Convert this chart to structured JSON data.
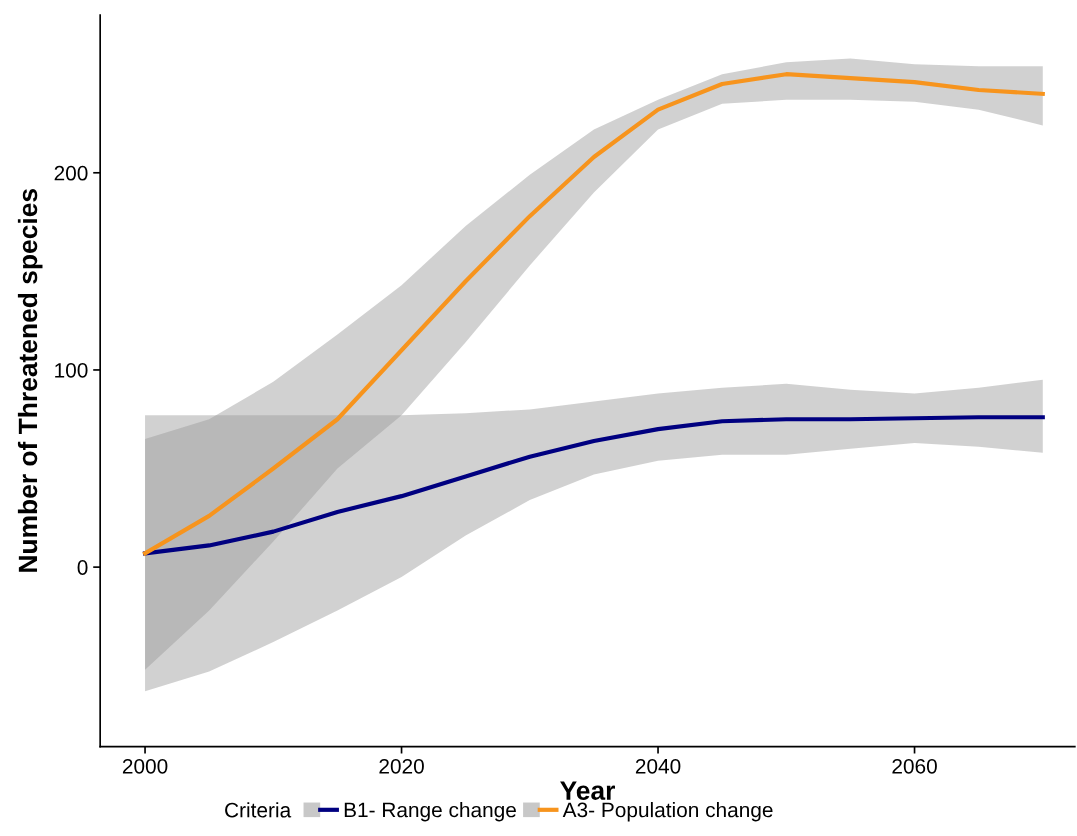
{
  "chart_data": {
    "type": "line",
    "xlabel": "Year",
    "ylabel": "Number of Threatened species",
    "legend_title": "Criteria",
    "x": [
      2000,
      2005,
      2010,
      2015,
      2020,
      2025,
      2030,
      2035,
      2040,
      2045,
      2050,
      2055,
      2060,
      2065,
      2070
    ],
    "series": [
      {
        "name": "B1- Range change",
        "color": "#000080",
        "values": [
          7,
          11,
          18,
          28,
          36,
          46,
          56,
          64,
          70,
          74,
          75,
          75,
          75.5,
          76,
          76
        ],
        "lower": [
          -63,
          -53,
          -38,
          -22,
          -5,
          16,
          34,
          47,
          54,
          57,
          57,
          60,
          63,
          61,
          58
        ],
        "upper": [
          77,
          77,
          77,
          77,
          77,
          78,
          80,
          84,
          88,
          91,
          93,
          90,
          88,
          91,
          95
        ]
      },
      {
        "name": "A3- Population change",
        "color": "#f7941d",
        "values": [
          7,
          26,
          50,
          75,
          110,
          145,
          178,
          208,
          232,
          245,
          250,
          248,
          246,
          242,
          240
        ],
        "lower": [
          -52,
          -22,
          13,
          50,
          77,
          114,
          153,
          190,
          222,
          235,
          237,
          237,
          236,
          232,
          224
        ],
        "upper": [
          65,
          75,
          94,
          118,
          143,
          173,
          199,
          222,
          237,
          250,
          256,
          258,
          255,
          254,
          254
        ]
      }
    ],
    "xlim": [
      1996.5,
      2072.5
    ],
    "ylim": [
      -91,
      280
    ],
    "xticks": [
      2000,
      2020,
      2040,
      2060
    ],
    "yticks": [
      0,
      100,
      200
    ],
    "grid": false,
    "legend": "bottom",
    "marker": "none",
    "line_style": "solid"
  }
}
